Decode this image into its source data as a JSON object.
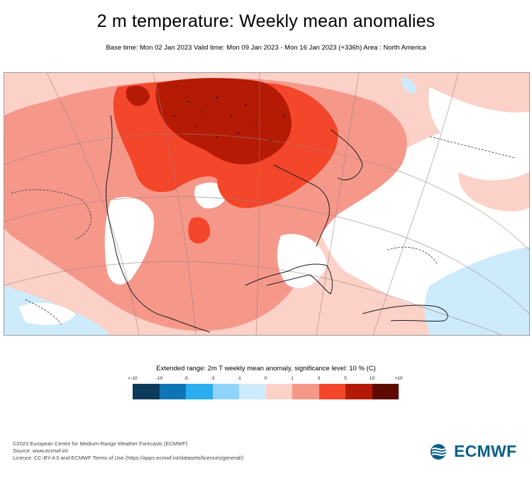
{
  "header": {
    "title": "2 m temperature: Weekly mean anomalies",
    "subtitle": "Base time: Mon 02 Jan 2023 Valid time: Mon 09 Jan 2023 - Mon 16 Jan 2023 (+336h) Area : North America"
  },
  "legend": {
    "title": "Extended range: 2m T weekly mean anomaly, significance level: 10 % (C)",
    "ticks": [
      "<-10",
      "-10",
      "-5",
      "-3",
      "-1",
      "0",
      "1",
      "3",
      "5",
      "10",
      ">10"
    ],
    "colors": [
      "#0b3a5a",
      "#0f76b6",
      "#2aaef0",
      "#8fd4f8",
      "#cdebfa",
      "#fcd1c8",
      "#f5988a",
      "#f3462a",
      "#b41a04",
      "#5e0b02"
    ]
  },
  "map": {
    "area": "North America",
    "colors": {
      "ocean_light_warm": "#fcd1c8",
      "warm": "#f5988a",
      "hot": "#f3462a",
      "very_hot": "#b41a04",
      "light_cool": "#cdebfa",
      "neutral": "#ffffff",
      "coastline": "#1a1a1a",
      "graticule": "#9a7f7f"
    }
  },
  "footer": {
    "line1": "©2023 European Centre for Medium-Range Weather Forecasts (ECMWF)",
    "line2": "Source: www.ecmwf.int",
    "line3": "Licence: CC-BY-4.0 and ECMWF Terms of Use (https://apps.ecmwf.int/datasets/licences/general/)"
  },
  "logo": {
    "text": "ECMWF",
    "icon": "ecmwf-logo-icon"
  }
}
